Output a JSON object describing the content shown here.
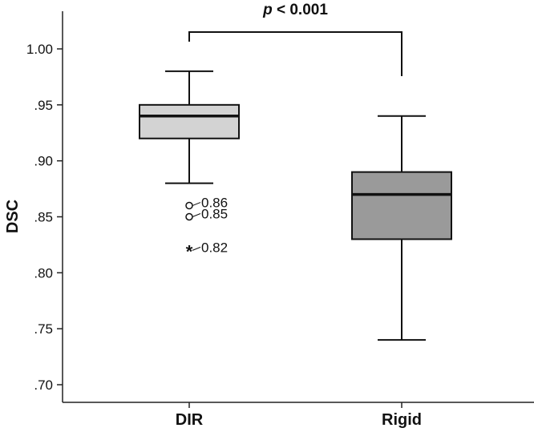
{
  "chart_data": {
    "type": "boxplot",
    "ylabel": "DSC",
    "ylim": [
      0.7,
      1.0
    ],
    "y_ticks": [
      {
        "value": 1.0,
        "label": "1.00"
      },
      {
        "value": 0.95,
        "label": ".95"
      },
      {
        "value": 0.9,
        "label": ".90"
      },
      {
        "value": 0.85,
        "label": ".85"
      },
      {
        "value": 0.8,
        "label": ".80"
      },
      {
        "value": 0.75,
        "label": ".75"
      },
      {
        "value": 0.7,
        "label": ".70"
      }
    ],
    "categories": [
      "DIR",
      "Rigid"
    ],
    "boxes": [
      {
        "category": "DIR",
        "whisker_low": 0.88,
        "q1": 0.92,
        "median": 0.94,
        "q3": 0.95,
        "whisker_high": 0.98,
        "fill": "#d3d3d3",
        "outliers": [
          {
            "value": 0.86,
            "marker": "circle",
            "label": "0.86"
          },
          {
            "value": 0.85,
            "marker": "circle",
            "label": "0.85"
          },
          {
            "value": 0.82,
            "marker": "star",
            "label": "0.82"
          }
        ]
      },
      {
        "category": "Rigid",
        "whisker_low": 0.74,
        "q1": 0.83,
        "median": 0.87,
        "q3": 0.89,
        "whisker_high": 0.94,
        "fill": "#9a9a9a",
        "outliers": []
      }
    ],
    "significance": {
      "italic": "p",
      "text": " < 0.001"
    },
    "grid": false
  }
}
